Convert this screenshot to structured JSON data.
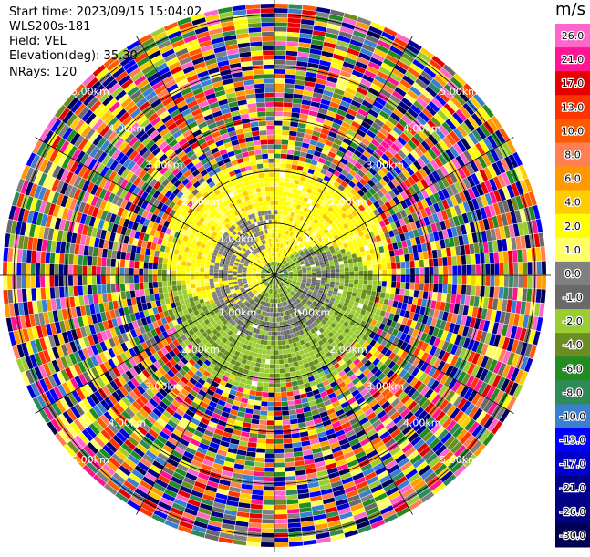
{
  "header": {
    "start_time": "Start time: 2023/09/15 15:04:02",
    "instrument": "WLS200s-181",
    "field": "Field: VEL",
    "elevation": "Elevation(deg): 35.30",
    "nrays": "NRays: 120"
  },
  "colorbar": {
    "unit": "m/s",
    "bins": [
      {
        "label": "26.0",
        "color": "#ff66cc"
      },
      {
        "label": "21.0",
        "color": "#ff1493"
      },
      {
        "label": "17.0",
        "color": "#e60000"
      },
      {
        "label": "13.0",
        "color": "#ff3300"
      },
      {
        "label": "10.0",
        "color": "#ff5a00"
      },
      {
        "label": "8.0",
        "color": "#ff7f50"
      },
      {
        "label": "6.0",
        "color": "#ff9900"
      },
      {
        "label": "4.0",
        "color": "#ffcc00"
      },
      {
        "label": "2.0",
        "color": "#ffff00"
      },
      {
        "label": "1.0",
        "color": "#ffff66"
      },
      {
        "label": "0.0",
        "color": "#808080"
      },
      {
        "label": "-1.0",
        "color": "#696969"
      },
      {
        "label": "-2.0",
        "color": "#9acd32"
      },
      {
        "label": "-4.0",
        "color": "#6b8e23"
      },
      {
        "label": "-6.0",
        "color": "#228b22"
      },
      {
        "label": "-8.0",
        "color": "#2e8b57"
      },
      {
        "label": "-10.0",
        "color": "#3a7fd0"
      },
      {
        "label": "-13.0",
        "color": "#0000ff"
      },
      {
        "label": "-17.0",
        "color": "#0000cd"
      },
      {
        "label": "-21.0",
        "color": "#00008b"
      },
      {
        "label": "-26.0",
        "color": "#000080"
      },
      {
        "label": "-30.0",
        "color": "#000050"
      }
    ]
  },
  "chart_data": {
    "type": "ppi",
    "field": "VEL",
    "units": "m/s",
    "range_rings_km": [
      1.0,
      2.0,
      3.0,
      4.0,
      5.0
    ],
    "ring_labels": [
      "1.00km",
      "2.00km",
      "3.00km",
      "4.00km",
      "5.00km"
    ],
    "max_range_km": 5.3,
    "n_rays": 120,
    "azimuth_lines_deg": [
      0,
      30,
      60,
      90,
      120,
      150,
      180,
      210,
      240,
      270,
      300,
      330
    ],
    "regions": [
      {
        "range_km": [
          0.0,
          0.25
        ],
        "pattern": "mixed near-zero",
        "values_ms": [
          -2.0,
          2.0
        ]
      },
      {
        "range_km": [
          0.25,
          2.2
        ],
        "azimuth_deg": [
          210,
          30
        ],
        "value_ms": 2.0,
        "note": "yellow, positive (north-west half)"
      },
      {
        "range_km": [
          0.25,
          2.2
        ],
        "azimuth_deg": [
          30,
          210
        ],
        "value_ms": -2.0,
        "note": "olive/green, negative (south-east half)"
      },
      {
        "range_km": [
          0.4,
          1.2
        ],
        "value_ms": 0.0,
        "note": "grey near-zero band"
      },
      {
        "range_km": [
          2.3,
          5.3
        ],
        "pattern": "noise",
        "note": "random colors across full scale"
      }
    ]
  }
}
